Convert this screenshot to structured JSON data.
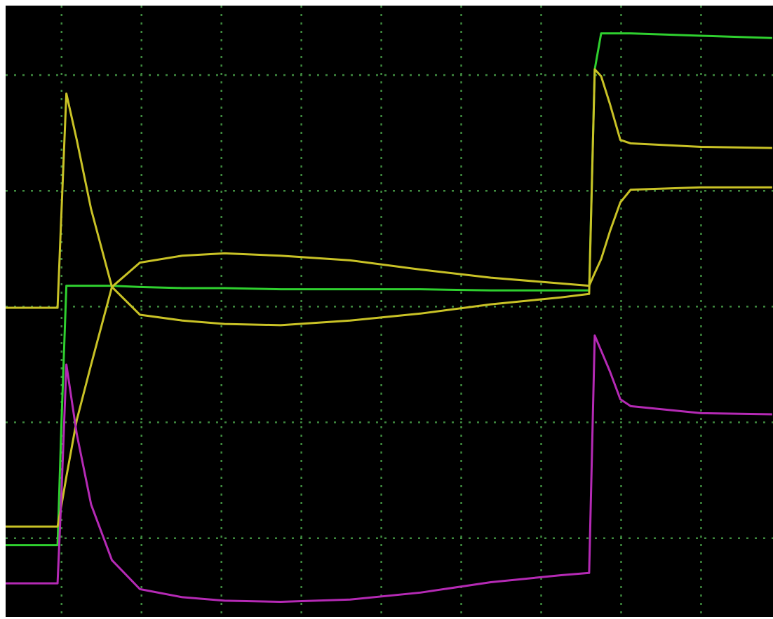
{
  "chart_data": {
    "type": "line",
    "x": [
      -0.7,
      -0.05,
      0.0,
      0.06,
      0.19,
      0.37,
      0.63,
      0.98,
      1.51,
      2.04,
      2.74,
      3.61,
      4.49,
      5.37,
      6.25,
      6.6,
      6.67,
      6.75,
      6.86,
      6.99,
      7.12,
      8.0,
      8.89
    ],
    "series": [
      {
        "color": "#2fd02f",
        "values": [
          -2.06,
          -2.06,
          -0.98,
          0.18,
          0.18,
          0.18,
          0.18,
          0.17,
          0.16,
          0.16,
          0.15,
          0.15,
          0.15,
          0.14,
          0.14,
          0.14,
          2.05,
          2.36,
          2.36,
          2.36,
          2.36,
          2.34,
          2.32
        ]
      },
      {
        "color": "#c9c226",
        "values": [
          -0.01,
          -0.01,
          0.84,
          1.84,
          1.44,
          0.84,
          0.17,
          -0.07,
          -0.12,
          -0.15,
          -0.16,
          -0.12,
          -0.06,
          0.02,
          0.08,
          0.11,
          2.05,
          1.99,
          1.75,
          1.44,
          1.41,
          1.38,
          1.37
        ]
      },
      {
        "color": "#c9c226",
        "values": [
          -1.9,
          -1.9,
          -1.71,
          -1.47,
          -0.98,
          -0.5,
          0.17,
          0.38,
          0.44,
          0.46,
          0.44,
          0.4,
          0.32,
          0.25,
          0.2,
          0.18,
          0.29,
          0.41,
          0.65,
          0.9,
          1.01,
          1.03,
          1.03
        ]
      },
      {
        "color": "#b52ab5",
        "values": [
          -2.39,
          -2.39,
          -1.59,
          -0.5,
          -1.1,
          -1.71,
          -2.19,
          -2.44,
          -2.51,
          -2.54,
          -2.55,
          -2.53,
          -2.47,
          -2.38,
          -2.32,
          -2.3,
          -0.25,
          -0.38,
          -0.56,
          -0.8,
          -0.86,
          -0.92,
          -0.93
        ]
      }
    ],
    "xlim": [
      -0.7,
      8.9
    ],
    "xticks": [
      0,
      1,
      2,
      3,
      4,
      5,
      6,
      7,
      8
    ],
    "ylim": [
      -2.68,
      2.6
    ],
    "yticks": [
      -2,
      -1,
      0,
      1,
      2
    ],
    "grid": true,
    "grid_color": "#3f8a3f",
    "background": "#000000"
  }
}
